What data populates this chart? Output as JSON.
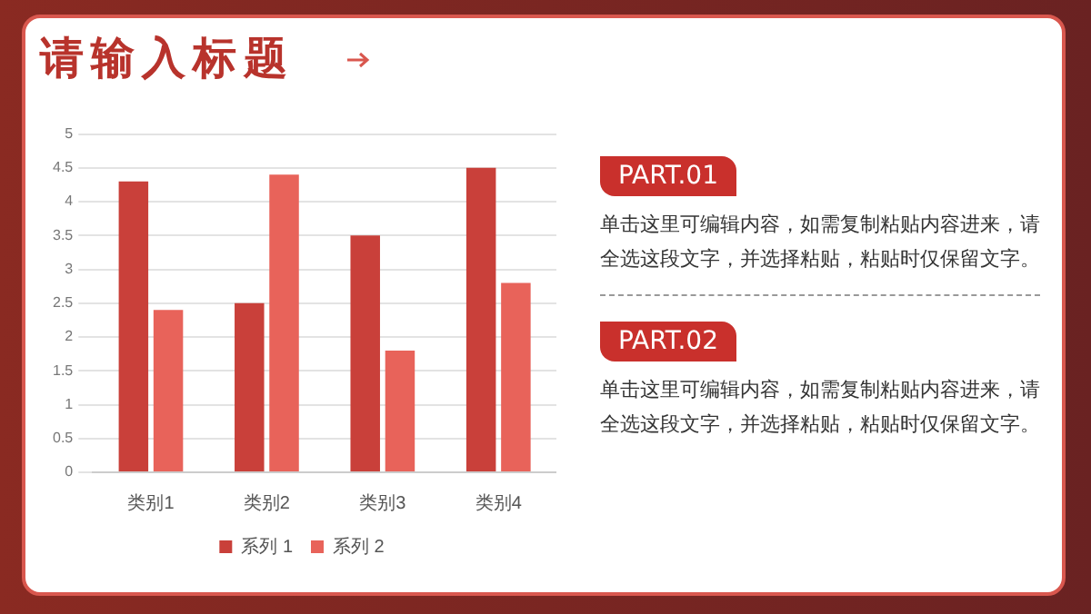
{
  "chart_data": {
    "type": "bar",
    "title": "请输入标题",
    "categories": [
      "类别1",
      "类别2",
      "类别3",
      "类别4"
    ],
    "series": [
      {
        "name": "系列 1",
        "color": "#c9403a",
        "values": [
          4.3,
          2.5,
          3.5,
          4.5
        ]
      },
      {
        "name": "系列 2",
        "color": "#e8635a",
        "values": [
          2.4,
          4.4,
          1.8,
          2.8
        ]
      }
    ],
    "ylim": [
      0,
      5
    ],
    "yticks": [
      0,
      0.5,
      1,
      1.5,
      2,
      2.5,
      3,
      3.5,
      4,
      4.5,
      5
    ],
    "grid": "y",
    "legend": "bottom",
    "annotations": [
      "PART.01",
      "单击这里可编辑内容，如需复制粘贴内容进来，请全选这段文字，并选择粘贴，粘贴时仅保留文字。",
      "PART.02",
      "单击这里可编辑内容，如需复制粘贴内容进来，请全选这段文字，并选择粘贴，粘贴时仅保留文字。"
    ]
  }
}
